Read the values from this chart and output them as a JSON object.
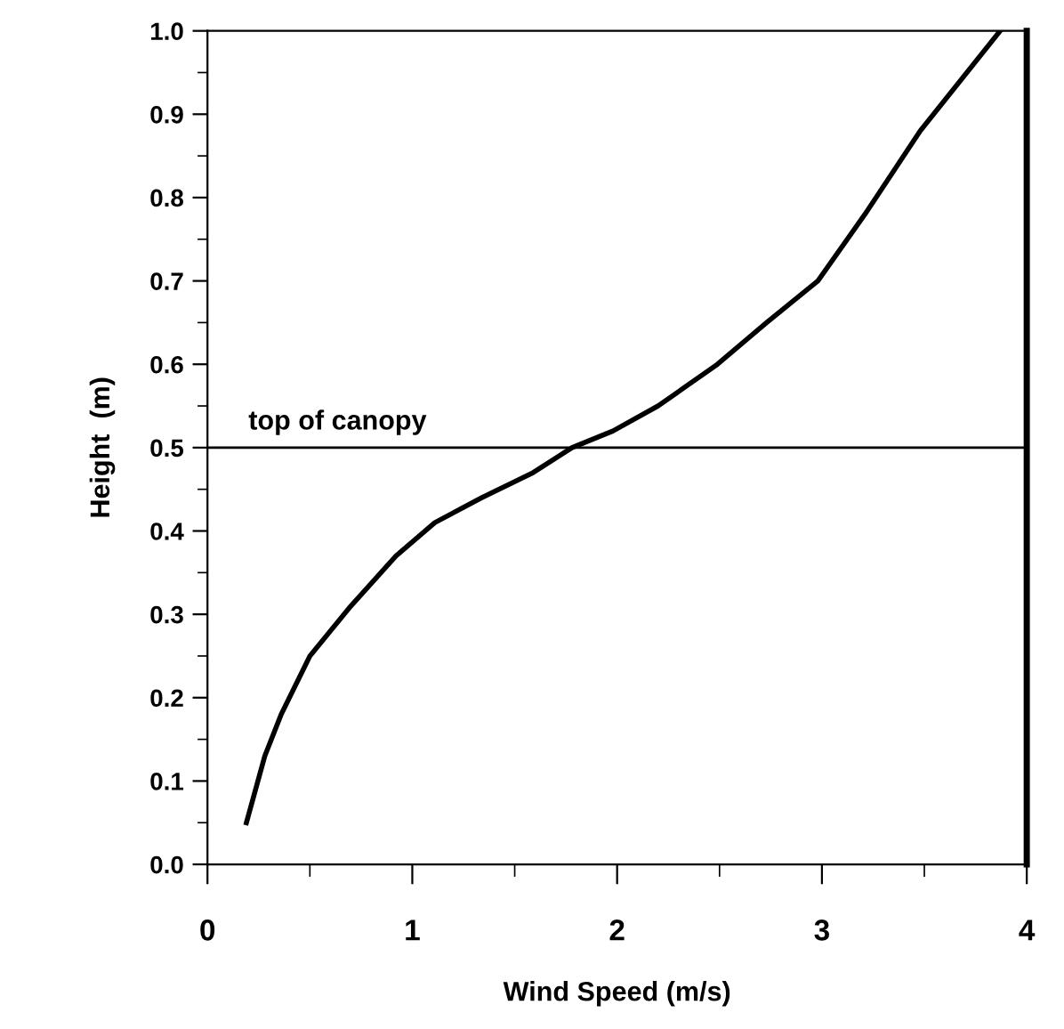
{
  "chart_data": {
    "type": "line",
    "xlabel": "Wind Speed (m/s)",
    "ylabel": "Height  (m)",
    "x": [
      0.19,
      0.28,
      0.36,
      0.5,
      0.7,
      0.92,
      1.11,
      1.34,
      1.59,
      1.78,
      1.98,
      2.2,
      2.49,
      2.73,
      2.98,
      3.21,
      3.48,
      3.87
    ],
    "series": [
      {
        "color": "#000000",
        "values": [
          0.05,
          0.13,
          0.18,
          0.25,
          0.31,
          0.37,
          0.41,
          0.44,
          0.47,
          0.5,
          0.52,
          0.55,
          0.6,
          0.65,
          0.7,
          0.78,
          0.88,
          1.0
        ]
      }
    ],
    "xlim": [
      0,
      4
    ],
    "xticks": [
      0,
      1,
      2,
      3,
      4
    ],
    "ylim": [
      0,
      1
    ],
    "yticks": [
      {
        "value": 0,
        "label": "0.0"
      },
      0.1,
      0.2,
      0.3,
      0.4,
      0.5,
      0.6,
      0.7,
      0.8,
      0.9,
      {
        "value": 1,
        "label": "1.0"
      }
    ],
    "ref_lines": [
      {
        "axis": "y",
        "value": 0.5,
        "label": "top of canopy",
        "color": "#000000"
      }
    ],
    "grid": false,
    "marker": "none",
    "line_style": "solid"
  }
}
